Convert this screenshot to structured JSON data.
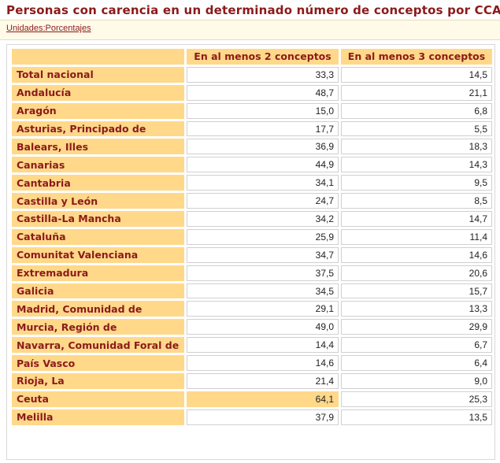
{
  "title": "Personas con carencia en un determinado número de conceptos por CCAA.",
  "units": "Unidades:Porcentajes",
  "table": {
    "headers": [
      "",
      "En al menos 2 conceptos",
      "En al menos 3 conceptos"
    ],
    "rows": [
      {
        "label": "Total nacional",
        "v1": "33,3",
        "v2": "14,5"
      },
      {
        "label": "Andalucía",
        "v1": "48,7",
        "v2": "21,1"
      },
      {
        "label": "Aragón",
        "v1": "15,0",
        "v2": "6,8"
      },
      {
        "label": "Asturias, Principado de",
        "v1": "17,7",
        "v2": "5,5"
      },
      {
        "label": "Balears, Illes",
        "v1": "36,9",
        "v2": "18,3"
      },
      {
        "label": "Canarias",
        "v1": "44,9",
        "v2": "14,3"
      },
      {
        "label": "Cantabria",
        "v1": "34,1",
        "v2": "9,5"
      },
      {
        "label": "Castilla y León",
        "v1": "24,7",
        "v2": "8,5"
      },
      {
        "label": "Castilla-La Mancha",
        "v1": "34,2",
        "v2": "14,7"
      },
      {
        "label": "Cataluña",
        "v1": "25,9",
        "v2": "11,4"
      },
      {
        "label": "Comunitat Valenciana",
        "v1": "34,7",
        "v2": "14,6"
      },
      {
        "label": "Extremadura",
        "v1": "37,5",
        "v2": "20,6"
      },
      {
        "label": "Galicia",
        "v1": "34,5",
        "v2": "15,7"
      },
      {
        "label": "Madrid, Comunidad de",
        "v1": "29,1",
        "v2": "13,3"
      },
      {
        "label": "Murcia, Región de",
        "v1": "49,0",
        "v2": "29,9"
      },
      {
        "label": "Navarra, Comunidad Foral de",
        "v1": "14,4",
        "v2": "6,7"
      },
      {
        "label": "País Vasco",
        "v1": "14,6",
        "v2": "6,4"
      },
      {
        "label": "Rioja, La",
        "v1": "21,4",
        "v2": "9,0"
      },
      {
        "label": "Ceuta",
        "v1": "64,1",
        "v2": "25,3",
        "highlight_v1": true
      },
      {
        "label": "Melilla",
        "v1": "37,9",
        "v2": "13,5"
      }
    ]
  },
  "colors": {
    "header_bg": "#ffd88a",
    "text_accent": "#8b1a1a"
  }
}
